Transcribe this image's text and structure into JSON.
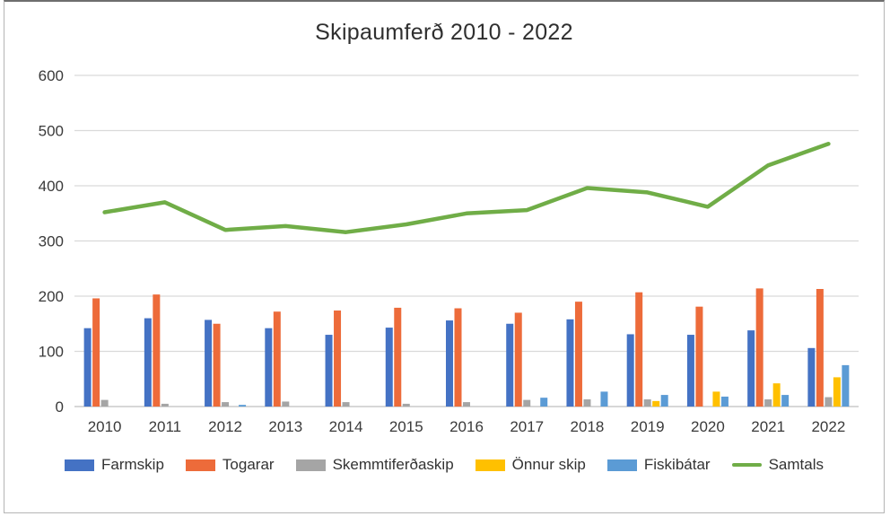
{
  "chart_data": {
    "type": "bar",
    "subtype": "grouped-bars-with-line",
    "title": "Skipaumferð 2010 - 2022",
    "categories": [
      "2010",
      "2011",
      "2012",
      "2013",
      "2014",
      "2015",
      "2016",
      "2017",
      "2018",
      "2019",
      "2020",
      "2021",
      "2022"
    ],
    "series": [
      {
        "name": "Farmskip",
        "kind": "bar",
        "color": "#4472C4",
        "values": [
          142,
          160,
          157,
          142,
          130,
          143,
          156,
          150,
          158,
          131,
          130,
          138,
          106
        ]
      },
      {
        "name": "Togarar",
        "kind": "bar",
        "color": "#ED6B3A",
        "values": [
          196,
          203,
          150,
          172,
          174,
          179,
          178,
          170,
          190,
          207,
          181,
          214,
          213
        ]
      },
      {
        "name": "Skemmtiferðaskip",
        "kind": "bar",
        "color": "#A5A5A5",
        "values": [
          12,
          5,
          8,
          9,
          8,
          5,
          8,
          12,
          13,
          13,
          0,
          13,
          17
        ]
      },
      {
        "name": "Önnur skip",
        "kind": "bar",
        "color": "#FFC000",
        "values": [
          0,
          0,
          0,
          0,
          0,
          0,
          0,
          0,
          0,
          10,
          27,
          42,
          53
        ]
      },
      {
        "name": "Fiskibátar",
        "kind": "bar",
        "color": "#5B9BD5",
        "values": [
          0,
          0,
          3,
          0,
          0,
          0,
          0,
          16,
          27,
          21,
          18,
          21,
          75
        ]
      },
      {
        "name": "Samtals",
        "kind": "line",
        "color": "#70AD47",
        "values": [
          352,
          370,
          320,
          327,
          316,
          330,
          350,
          356,
          396,
          388,
          362,
          437,
          476
        ]
      }
    ],
    "ylim": [
      0,
      600
    ],
    "yticks": [
      0,
      100,
      200,
      300,
      400,
      500,
      600
    ],
    "xlabel": "",
    "ylabel": "",
    "grid": true,
    "legend_position": "bottom",
    "colors": {
      "gridline": "#d9d9d9",
      "axis_line": "#bfbfbf",
      "tick_text": "#3a3a3a"
    }
  }
}
